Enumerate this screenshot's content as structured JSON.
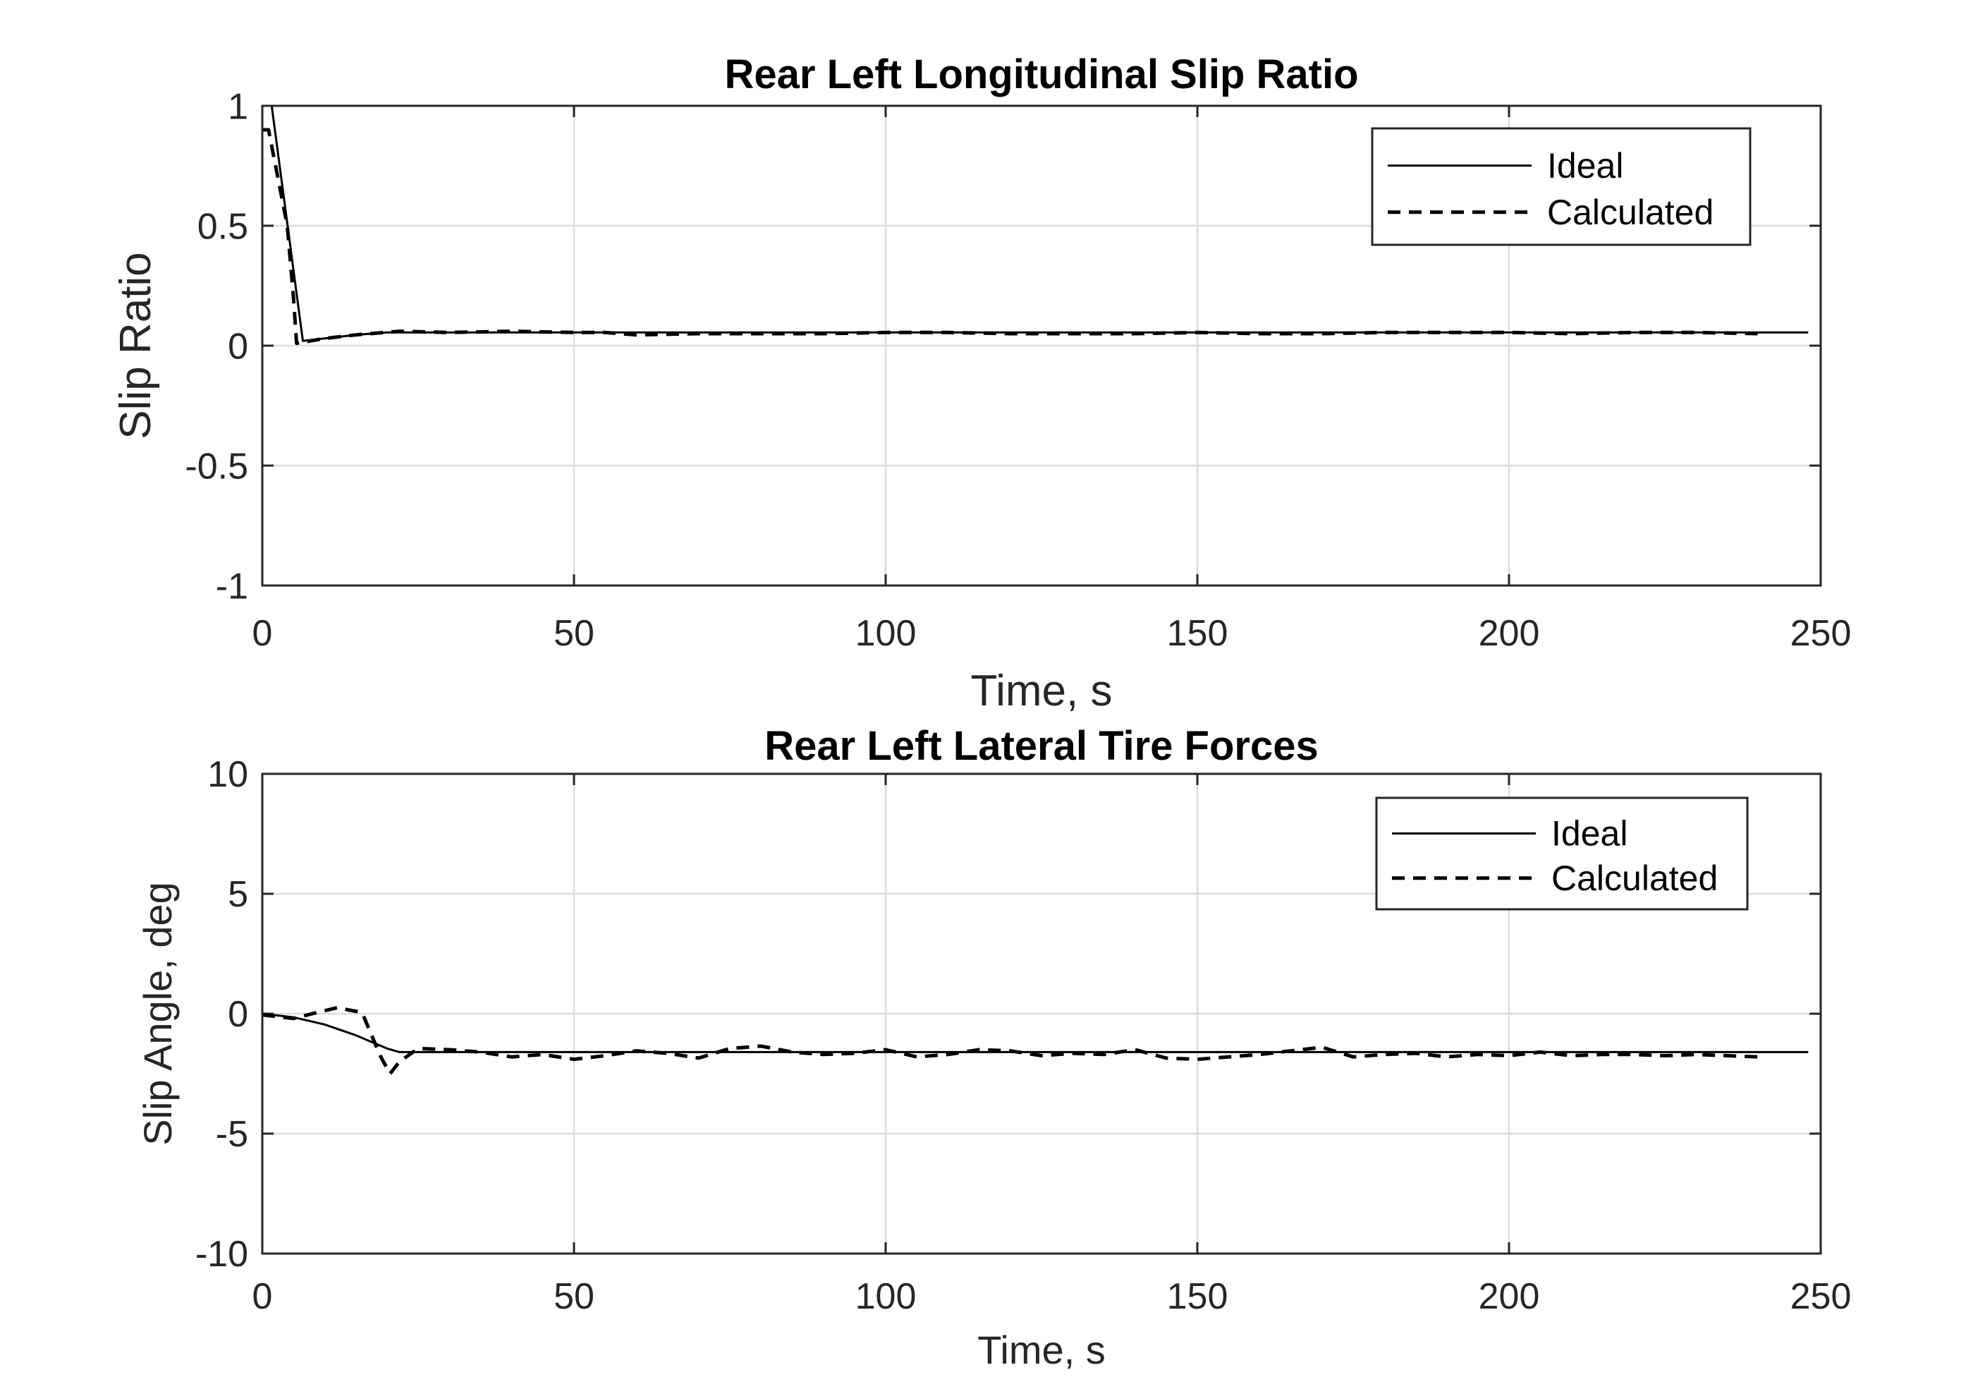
{
  "chart_data": [
    {
      "type": "line",
      "title": "Rear Left Longitudinal Slip Ratio",
      "xlabel": "Time, s",
      "ylabel": "Slip Ratio",
      "xlim": [
        0,
        250
      ],
      "ylim": [
        -1,
        1
      ],
      "xticks": [
        0,
        50,
        100,
        150,
        200,
        250
      ],
      "yticks": [
        -1,
        -0.5,
        0,
        0.5,
        1
      ],
      "grid": true,
      "legend_position": "top-right",
      "series": [
        {
          "name": "Ideal",
          "style": "solid",
          "color": "#000000",
          "x": [
            0,
            1.5,
            6.5,
            10,
            15,
            20,
            30,
            50,
            100,
            150,
            200,
            248
          ],
          "y": [
            1.0,
            1.0,
            0.02,
            0.03,
            0.045,
            0.055,
            0.055,
            0.055,
            0.055,
            0.055,
            0.055,
            0.055
          ]
        },
        {
          "name": "Calculated",
          "style": "dashed",
          "color": "#000000",
          "x": [
            0,
            1,
            4,
            5,
            5.5,
            10,
            15,
            22,
            30,
            40,
            50,
            55,
            60,
            70,
            80,
            90,
            100,
            110,
            120,
            130,
            140,
            150,
            160,
            170,
            180,
            190,
            200,
            210,
            220,
            230,
            240
          ],
          "y": [
            0.9,
            0.9,
            0.5,
            0.2,
            0.01,
            0.03,
            0.045,
            0.06,
            0.055,
            0.06,
            0.055,
            0.055,
            0.045,
            0.05,
            0.05,
            0.05,
            0.055,
            0.055,
            0.05,
            0.05,
            0.05,
            0.055,
            0.05,
            0.05,
            0.055,
            0.055,
            0.055,
            0.05,
            0.055,
            0.055,
            0.05
          ]
        }
      ]
    },
    {
      "type": "line",
      "title": "Rear Left Lateral Tire Forces",
      "xlabel": "Time, s",
      "ylabel": "Slip Angle, deg",
      "xlim": [
        0,
        250
      ],
      "ylim": [
        -10,
        10
      ],
      "xticks": [
        0,
        50,
        100,
        150,
        200,
        250
      ],
      "yticks": [
        -10,
        -5,
        0,
        5,
        10
      ],
      "grid": true,
      "legend_position": "top-right",
      "series": [
        {
          "name": "Ideal",
          "style": "solid",
          "color": "#000000",
          "x": [
            0,
            5,
            10,
            15,
            20,
            22,
            25,
            50,
            100,
            150,
            200,
            248
          ],
          "y": [
            0,
            -0.15,
            -0.45,
            -0.9,
            -1.45,
            -1.6,
            -1.6,
            -1.6,
            -1.6,
            -1.6,
            -1.6,
            -1.6
          ]
        },
        {
          "name": "Calculated",
          "style": "dashed",
          "color": "#000000",
          "x": [
            0,
            5,
            8,
            12,
            16,
            19,
            20.5,
            22,
            25,
            30,
            35,
            40,
            45,
            50,
            55,
            60,
            65,
            70,
            75,
            80,
            85,
            90,
            95,
            100,
            105,
            110,
            115,
            120,
            125,
            130,
            135,
            140,
            145,
            150,
            155,
            160,
            165,
            170,
            175,
            180,
            185,
            190,
            195,
            200,
            205,
            210,
            215,
            220,
            225,
            230,
            235,
            240
          ],
          "y": [
            -0.05,
            -0.2,
            0.0,
            0.25,
            0.05,
            -1.8,
            -2.5,
            -2.0,
            -1.45,
            -1.5,
            -1.6,
            -1.8,
            -1.7,
            -1.9,
            -1.75,
            -1.55,
            -1.65,
            -1.85,
            -1.45,
            -1.35,
            -1.6,
            -1.7,
            -1.65,
            -1.5,
            -1.8,
            -1.7,
            -1.5,
            -1.55,
            -1.75,
            -1.65,
            -1.7,
            -1.5,
            -1.85,
            -1.9,
            -1.8,
            -1.7,
            -1.55,
            -1.4,
            -1.8,
            -1.7,
            -1.65,
            -1.8,
            -1.7,
            -1.75,
            -1.6,
            -1.75,
            -1.7,
            -1.7,
            -1.75,
            -1.7,
            -1.75,
            -1.8
          ]
        }
      ]
    }
  ]
}
